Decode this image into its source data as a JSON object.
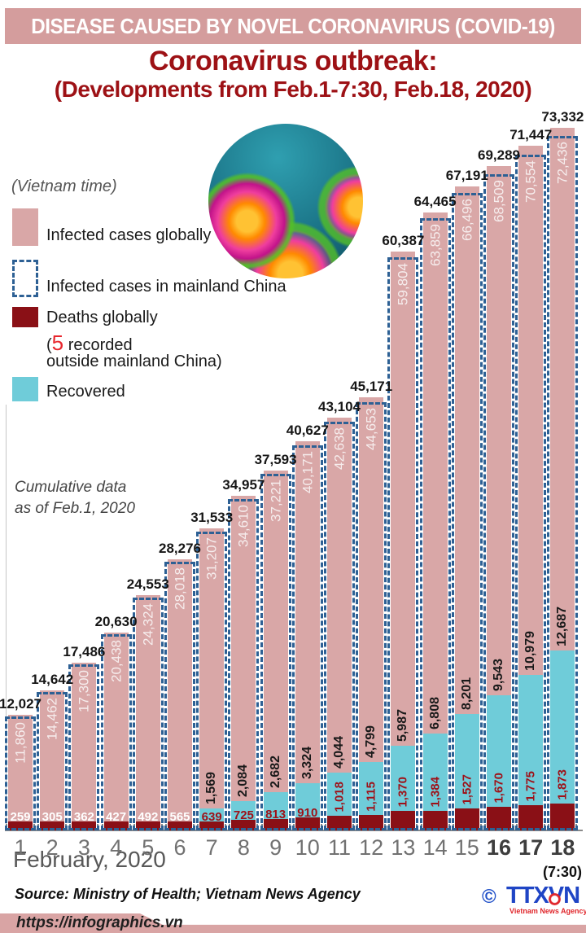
{
  "header": {
    "banner": "DISEASE CAUSED BY NOVEL CORONAVIRUS (COVID-19)"
  },
  "title": "Coronavirus outbreak:",
  "subtitle": "(Developments from Feb.1-7:30, Feb.18, 2020)",
  "vietnam_time": "(Vietnam time)",
  "legend": {
    "infected_global": "Infected cases globally",
    "infected_china": "Infected cases in mainland China",
    "deaths": "Deaths globally",
    "deaths_note_prefix": "(",
    "deaths_note_number": "5",
    "deaths_note_suffix": " recorded",
    "deaths_note_line2": "outside mainland China)",
    "recovered": "Recovered"
  },
  "cumulative": {
    "line1": "Cumulative data",
    "line2": "as of Feb.1, 2020"
  },
  "xaxis": {
    "month_label": "February, 2020",
    "time_label": "(7:30)"
  },
  "footer": {
    "source": "Source: Ministry of Health; Vietnam News Agency",
    "url": "https://infographics.vn"
  },
  "logo": {
    "copyright": "©",
    "name": "TTXVN",
    "tagline": "Vietnam News Agency"
  },
  "colors": {
    "header_pink": "#d49d9d",
    "bar_pink": "#d9a7a7",
    "recovered_cyan": "#6fccd9",
    "deaths_dark_red": "#8a1016",
    "china_dashed_blue": "#2d6094",
    "title_red": "#9d1115",
    "death_label_red": "#9e1118",
    "axis_gray": "#8a8a8a"
  },
  "chart_data": {
    "type": "bar",
    "title": "Coronavirus outbreak: (Developments from Feb.1-7:30, Feb.18, 2020), Vietnam time",
    "annotation": "Cumulative data as of Feb.1, 2020",
    "xlabel": "February, 2020",
    "x_axis_note_day18": "(7:30)",
    "categories": [
      "1",
      "2",
      "3",
      "4",
      "5",
      "6",
      "7",
      "8",
      "9",
      "10",
      "11",
      "12",
      "13",
      "14",
      "15",
      "16",
      "17",
      "18"
    ],
    "bold_categories": [
      "16",
      "17",
      "18"
    ],
    "legend_position": "upper-left",
    "gridlines": false,
    "series": [
      {
        "name": "Infected cases globally",
        "values": [
          12027,
          14642,
          17486,
          20630,
          24553,
          28276,
          31533,
          34957,
          37593,
          40627,
          43104,
          45171,
          60387,
          64465,
          67191,
          69289,
          71447,
          73332
        ]
      },
      {
        "name": "Infected cases in mainland China",
        "values": [
          11860,
          14462,
          17300,
          20438,
          24324,
          28018,
          31207,
          34610,
          37221,
          40171,
          42638,
          44653,
          59804,
          63859,
          66496,
          68509,
          70554,
          72436
        ]
      },
      {
        "name": "Recovered",
        "values": [
          null,
          null,
          null,
          null,
          null,
          null,
          1569,
          2084,
          2682,
          3324,
          4044,
          4799,
          5987,
          6808,
          8201,
          9543,
          10979,
          12687
        ]
      },
      {
        "name": "Deaths globally",
        "values": [
          259,
          305,
          362,
          427,
          492,
          565,
          639,
          725,
          813,
          910,
          1018,
          1115,
          1370,
          1384,
          1527,
          1670,
          1775,
          1873
        ]
      }
    ],
    "deaths_outside_mainland_china": 5
  }
}
